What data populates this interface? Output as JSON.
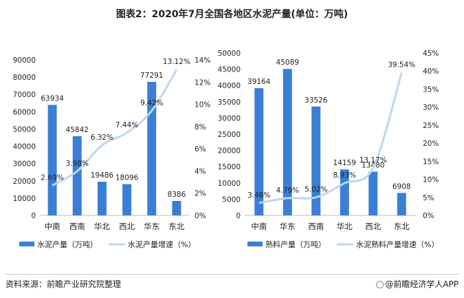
{
  "title": "图表2：2020年7月全国各地区水泥产量(单位：万吨)",
  "source": "资料来源：前瞻产业研究院整理",
  "brand": "@前瞻经济学人APP",
  "colors": {
    "bar": "#3A7FD5",
    "line": "#BDD7EE",
    "text": "#222222",
    "axis": "#333333"
  },
  "chart_data": [
    {
      "type": "bar",
      "categories": [
        "中南",
        "西南",
        "华北",
        "西北",
        "华东",
        "东北"
      ],
      "series": [
        {
          "name": "水泥产量（万吨）",
          "type": "bar",
          "axis": "left",
          "values": [
            63934,
            45842,
            19486,
            18096,
            77291,
            8386
          ]
        },
        {
          "name": "水泥产量增速（%）",
          "type": "line",
          "axis": "right",
          "values": [
            2.69,
            3.98,
            6.32,
            7.44,
            9.42,
            13.12
          ]
        }
      ],
      "bar_labels": [
        "63934",
        "45842",
        "19486",
        "18096",
        "77291",
        "8386"
      ],
      "line_labels": [
        "2.69%",
        "3.98%",
        "6.32%",
        "7.44%",
        "9.42%",
        "13.12%"
      ],
      "yleft": {
        "min": 0,
        "max": 90000,
        "step": 10000,
        "ticks": [
          "0",
          "10000",
          "20000",
          "30000",
          "40000",
          "50000",
          "60000",
          "70000",
          "80000",
          "90000"
        ]
      },
      "yright": {
        "min": 0,
        "max": 14,
        "step": 2,
        "ticks": [
          "0%",
          "2%",
          "4%",
          "6%",
          "8%",
          "10%",
          "12%",
          "14%"
        ]
      },
      "legend": {
        "position": "bottom",
        "bar": "水泥产量（万吨）",
        "line": "水泥产量增速（%）"
      }
    },
    {
      "type": "bar",
      "categories": [
        "中南",
        "华东",
        "西南",
        "华北",
        "西北",
        "东北"
      ],
      "series": [
        {
          "name": "熟料产量（万吨）",
          "type": "bar",
          "axis": "left",
          "values": [
            39164,
            45089,
            33526,
            14159,
            13480,
            6908
          ]
        },
        {
          "name": "水泥熟料产量增速（%）",
          "type": "line",
          "axis": "right",
          "values": [
            3.46,
            4.79,
            5.02,
            8.93,
            13.17,
            39.54
          ]
        }
      ],
      "bar_labels": [
        "39164",
        "45089",
        "33526",
        "14159",
        "13480",
        "6908"
      ],
      "line_labels": [
        "3.46%",
        "4.79%",
        "5.02%",
        "8.93%",
        "13.17%",
        "39.54%"
      ],
      "yleft": {
        "min": 0,
        "max": 50000,
        "step": 5000,
        "ticks": [
          "0",
          "5000",
          "10000",
          "15000",
          "20000",
          "25000",
          "30000",
          "35000",
          "40000",
          "45000",
          "50000"
        ]
      },
      "yright": {
        "min": 0,
        "max": 45,
        "step": 5,
        "ticks": [
          "0%",
          "5%",
          "10%",
          "15%",
          "20%",
          "25%",
          "30%",
          "35%",
          "40%",
          "45%"
        ]
      },
      "legend": {
        "position": "bottom",
        "bar": "熟料产量（万吨）",
        "line": "水泥熟料产量增速（%）"
      }
    }
  ]
}
